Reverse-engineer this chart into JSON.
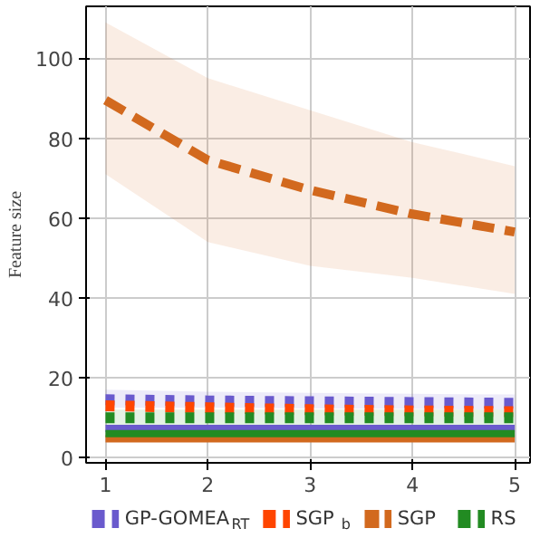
{
  "chart_data": {
    "type": "line",
    "ylabel": "Feature size",
    "x": [
      1,
      2,
      3,
      4,
      5
    ],
    "xlim": [
      0.81,
      5.15
    ],
    "ylim": [
      -1.3,
      113
    ],
    "xticks": [
      1,
      2,
      3,
      4,
      5
    ],
    "yticks": [
      0,
      20,
      40,
      60,
      80,
      100
    ],
    "grid": true,
    "legend": "bottom",
    "series": [
      {
        "name": "GP-GOMEA$_{RT}$",
        "color": "#6a5acd",
        "line_style": "dotted",
        "values": [
          14.5,
          14.2,
          14,
          13.8,
          13.6
        ],
        "lower": [
          12.5,
          12.5,
          12.3,
          12.2,
          12
        ],
        "upper": [
          17,
          16.5,
          16.2,
          16,
          15.8
        ]
      },
      {
        "name": "SGP$_{b}$",
        "color": "#ff4500",
        "line_style": "dotted",
        "values": [
          13,
          12.5,
          12,
          11.7,
          11.5
        ]
      },
      {
        "name": "SGP",
        "color": "#d2691e",
        "line_style": "dashed",
        "values": [
          89.5,
          74.5,
          67,
          61,
          56.5
        ],
        "lower": [
          71,
          54,
          48,
          45,
          41
        ],
        "upper": [
          109,
          95,
          87,
          79,
          73
        ]
      },
      {
        "name": "RS",
        "color": "#228b22",
        "line_style": "dotted",
        "values": [
          10,
          10,
          10,
          10,
          10
        ],
        "lower": [
          8,
          8,
          8,
          8,
          8
        ],
        "upper": [
          12,
          12,
          12,
          12,
          12
        ]
      },
      {
        "color": "#6a5acd",
        "line_style": "solid",
        "values": [
          7.3,
          7.3,
          7.3,
          7.3,
          7.3
        ]
      },
      {
        "color": "#d2691e",
        "line_style": "solid",
        "values": [
          4.7,
          4.7,
          4.7,
          4.7,
          4.7
        ]
      },
      {
        "color": "#228b22",
        "line_style": "solid",
        "values": [
          6,
          6,
          6,
          6,
          6
        ]
      }
    ]
  }
}
